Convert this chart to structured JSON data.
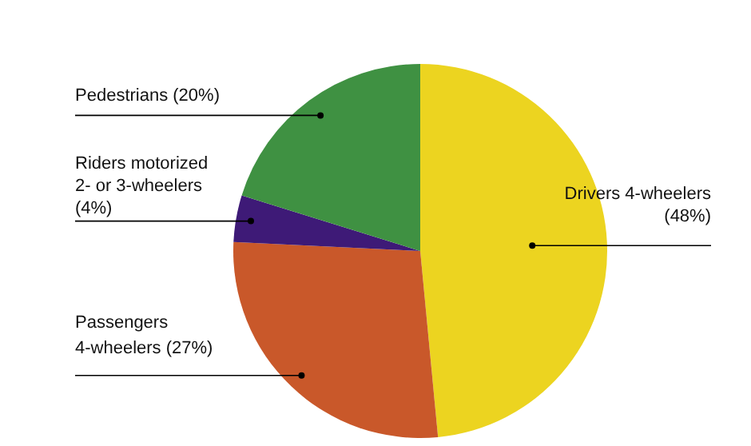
{
  "chart_data": {
    "type": "pie",
    "categories": [
      "Drivers 4-wheelers",
      "Passengers 4-wheelers",
      "Riders motorized 2- or 3-wheelers",
      "Pedestrians"
    ],
    "values": [
      48,
      27,
      4,
      20
    ],
    "value_labels": [
      "(48%)",
      "(27%)",
      "(4%)",
      "(20%)"
    ],
    "colors": [
      "#ecd420",
      "#c9582a",
      "#3e1a77",
      "#3f9142"
    ]
  }
}
